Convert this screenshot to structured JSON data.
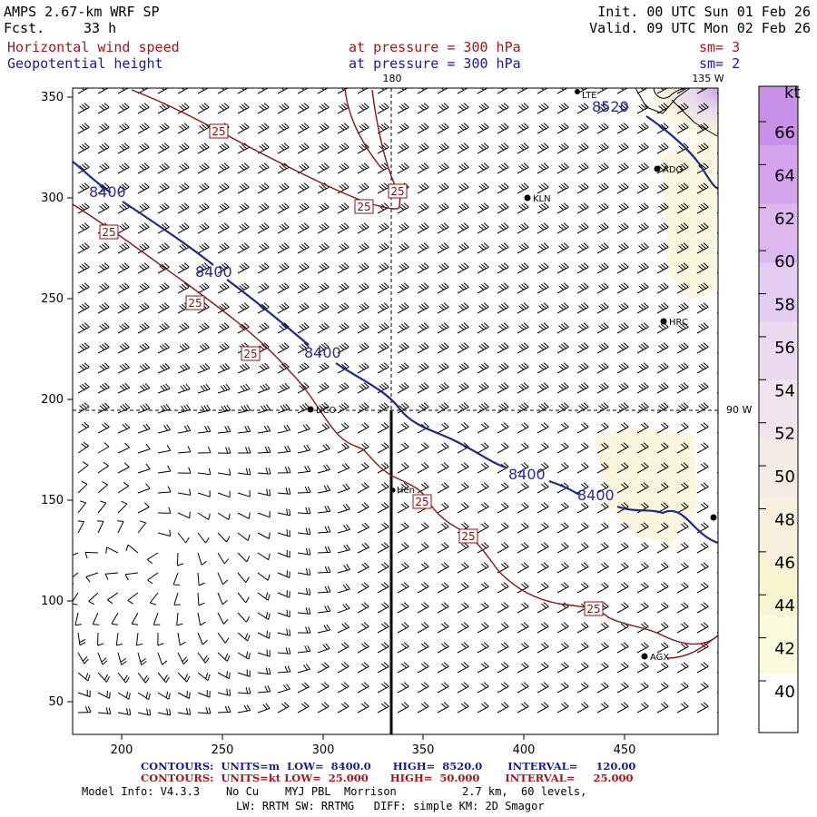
{
  "header": {
    "title": "AMPS 2.67-km WRF SP",
    "forecast_label": "Fcst.",
    "forecast_value": "33 h",
    "init": "Init. 00 UTC Sun 01 Feb 26",
    "valid": "Valid. 09 UTC Mon 02 Feb 26",
    "field1_name": "Horizontal wind speed",
    "field1_level": "at pressure =  300 hPa",
    "field1_sm": "sm= 3",
    "field2_name": "Geopotential height",
    "field2_level": "at pressure =  300 hPa",
    "field2_sm": "sm= 2"
  },
  "map": {
    "meridian_180_label": "180",
    "meridian_135w_label": "135 W",
    "meridian_90w_label": "90 W",
    "x_ticks": [
      "200",
      "250",
      "300",
      "350",
      "400",
      "450"
    ],
    "y_ticks": [
      "350",
      "300",
      "250",
      "200",
      "150",
      "100",
      "50"
    ],
    "stations": [
      {
        "name": "KLN"
      },
      {
        "name": "ADG"
      },
      {
        "name": "HRC"
      },
      {
        "name": "NCO"
      },
      {
        "name": "Hen"
      },
      {
        "name": "AGX"
      },
      {
        "name": "LTE"
      }
    ],
    "height_labels": [
      "8400",
      "8400",
      "8400",
      "8400",
      "8400",
      "8520"
    ],
    "speed_labels": [
      "25",
      "25",
      "25",
      "25",
      "25",
      "25",
      "25",
      "25",
      "25",
      "25"
    ],
    "colors": {
      "height_contour": "#1c2a8c",
      "speed_contour": "#8a1414",
      "barbs": "#000000"
    }
  },
  "colorbar": {
    "unit": "kt",
    "ticks": [
      "66",
      "64",
      "62",
      "60",
      "58",
      "56",
      "54",
      "52",
      "50",
      "48",
      "46",
      "44",
      "42",
      "40"
    ],
    "colors": [
      "#c890e8",
      "#d4a4ec",
      "#dcb8ee",
      "#e4ccf0",
      "#ecdaf0",
      "#f2e4ec",
      "#f4ece4",
      "#f6f0dc",
      "#f8f4d0",
      "#fafadc",
      "#ffffff"
    ]
  },
  "footer": {
    "contours1": "CONTOURS:  UNITS=m  LOW=  8400.0      HIGH=  8520.0       INTERVAL=     120.00",
    "contours2": "CONTOURS:  UNITS=kt LOW=  25.000      HIGH=  50.000       INTERVAL=     25.000",
    "model_info": "Model Info: V4.3.3    No Cu    MYJ PBL  Morrison          2.7 km,  60 levels,",
    "model_info2": "LW: RRTM SW: RRTMG   DIFF: simple KM: 2D Smagor"
  }
}
